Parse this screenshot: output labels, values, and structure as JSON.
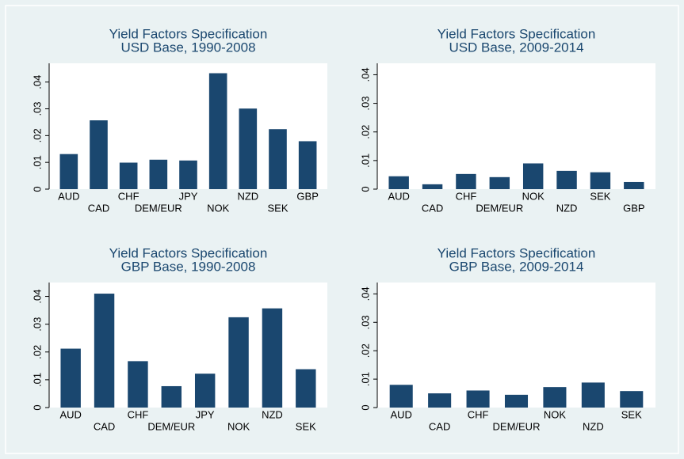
{
  "chart_data": [
    {
      "type": "bar",
      "title": "Yield Factors Specification",
      "subtitle": "USD Base, 1990-2008",
      "categories": [
        "AUD",
        "CAD",
        "CHF",
        "DEM/EUR",
        "JPY",
        "NOK",
        "NZD",
        "SEK",
        "GBP"
      ],
      "values": [
        0.0131,
        0.0257,
        0.0099,
        0.011,
        0.0107,
        0.0433,
        0.0301,
        0.0224,
        0.0179
      ],
      "color": "#1a476f",
      "ylim": [
        0,
        0.047
      ],
      "yticks": [
        0,
        {
          "value": 0.01,
          "label": ".01"
        },
        {
          "value": 0.02,
          "label": ".02"
        },
        {
          "value": 0.03,
          "label": ".03"
        },
        {
          "value": 0.04,
          "label": ".04"
        }
      ]
    },
    {
      "type": "bar",
      "title": "Yield Factors Specification",
      "subtitle": "USD Base, 2009-2014",
      "categories": [
        "AUD",
        "CAD",
        "CHF",
        "DEM/EUR",
        "NOK",
        "NZD",
        "SEK",
        "GBP"
      ],
      "values": [
        0.0045,
        0.0017,
        0.0053,
        0.0042,
        0.009,
        0.0064,
        0.0059,
        0.0025
      ],
      "color": "#1a476f",
      "ylim": [
        0,
        0.044
      ],
      "yticks": [
        0,
        {
          "value": 0.01,
          "label": ".01"
        },
        {
          "value": 0.02,
          "label": ".02"
        },
        {
          "value": 0.03,
          "label": ".03"
        },
        {
          "value": 0.04,
          "label": ".04"
        }
      ]
    },
    {
      "type": "bar",
      "title": "Yield Factors Specification",
      "subtitle": "GBP Base, 1990-2008",
      "categories": [
        "AUD",
        "CAD",
        "CHF",
        "DEM/EUR",
        "JPY",
        "NOK",
        "NZD",
        "SEK"
      ],
      "values": [
        0.0212,
        0.041,
        0.0167,
        0.0077,
        0.0122,
        0.0325,
        0.0357,
        0.0138
      ],
      "color": "#1a476f",
      "ylim": [
        0,
        0.045
      ],
      "yticks": [
        0,
        {
          "value": 0.01,
          "label": ".01"
        },
        {
          "value": 0.02,
          "label": ".02"
        },
        {
          "value": 0.03,
          "label": ".03"
        },
        {
          "value": 0.04,
          "label": ".04"
        }
      ]
    },
    {
      "type": "bar",
      "title": "Yield Factors Specification",
      "subtitle": "GBP Base, 2009-2014",
      "categories": [
        "AUD",
        "CAD",
        "CHF",
        "DEM/EUR",
        "NOK",
        "NZD",
        "SEK"
      ],
      "values": [
        0.008,
        0.005,
        0.006,
        0.0045,
        0.0072,
        0.0088,
        0.0058
      ],
      "color": "#1a476f",
      "ylim": [
        0,
        0.044
      ],
      "yticks": [
        0,
        {
          "value": 0.01,
          "label": ".01"
        },
        {
          "value": 0.02,
          "label": ".02"
        },
        {
          "value": 0.03,
          "label": ".03"
        },
        {
          "value": 0.04,
          "label": ".04"
        }
      ]
    }
  ]
}
